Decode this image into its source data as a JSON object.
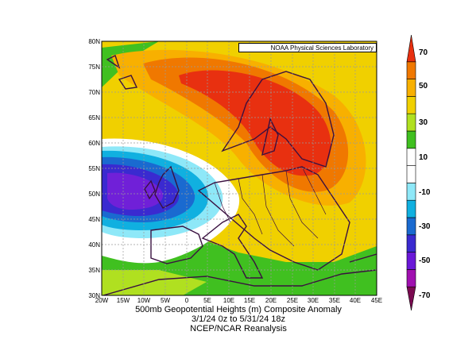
{
  "credit": "NOAA Physical Sciences Laboratory",
  "caption": {
    "line1": "500mb Geopotential Heights (m)   Composite Anomaly",
    "line2": "3/1/24 0z  to 5/31/24 18z",
    "line3": "NCEP/NCAR Reanalysis"
  },
  "lat_labels": [
    "80N",
    "75N",
    "70N",
    "65N",
    "60N",
    "55N",
    "50N",
    "45N",
    "40N",
    "35N",
    "30N"
  ],
  "lon_labels": [
    "20W",
    "15W",
    "10W",
    "5W",
    "0",
    "5E",
    "10E",
    "15E",
    "20E",
    "25E",
    "30E",
    "35E",
    "40E",
    "45E"
  ],
  "colorbar": {
    "labels": [
      "70",
      "50",
      "30",
      "10",
      "-10",
      "-30",
      "-50",
      "-70"
    ],
    "colors": [
      "#7a0a50",
      "#a010b0",
      "#6a18d8",
      "#3a2ad0",
      "#1a6ad0",
      "#10b0e0",
      "#8ee8f8",
      "#ffffff",
      "#ffffff",
      "#40c020",
      "#b0e020",
      "#f0d000",
      "#f8b000",
      "#f07800",
      "#e83010"
    ]
  },
  "chart_data": {
    "type": "heatmap",
    "title": "500mb Geopotential Heights (m)   Composite Anomaly",
    "subtitle": "3/1/24 0z  to 5/31/24 18z",
    "xlim": [
      -20,
      45
    ],
    "ylim": [
      30,
      80
    ],
    "contour_levels": [
      -70,
      -60,
      -50,
      -40,
      -30,
      -20,
      -10,
      10,
      20,
      30,
      40,
      50,
      60,
      70
    ],
    "features": [
      {
        "name": "positive-anomaly-center",
        "lon": 22,
        "lat": 63,
        "value": 60
      },
      {
        "name": "negative-anomaly-center",
        "lon": -8,
        "lat": 50,
        "value": -40
      }
    ]
  }
}
